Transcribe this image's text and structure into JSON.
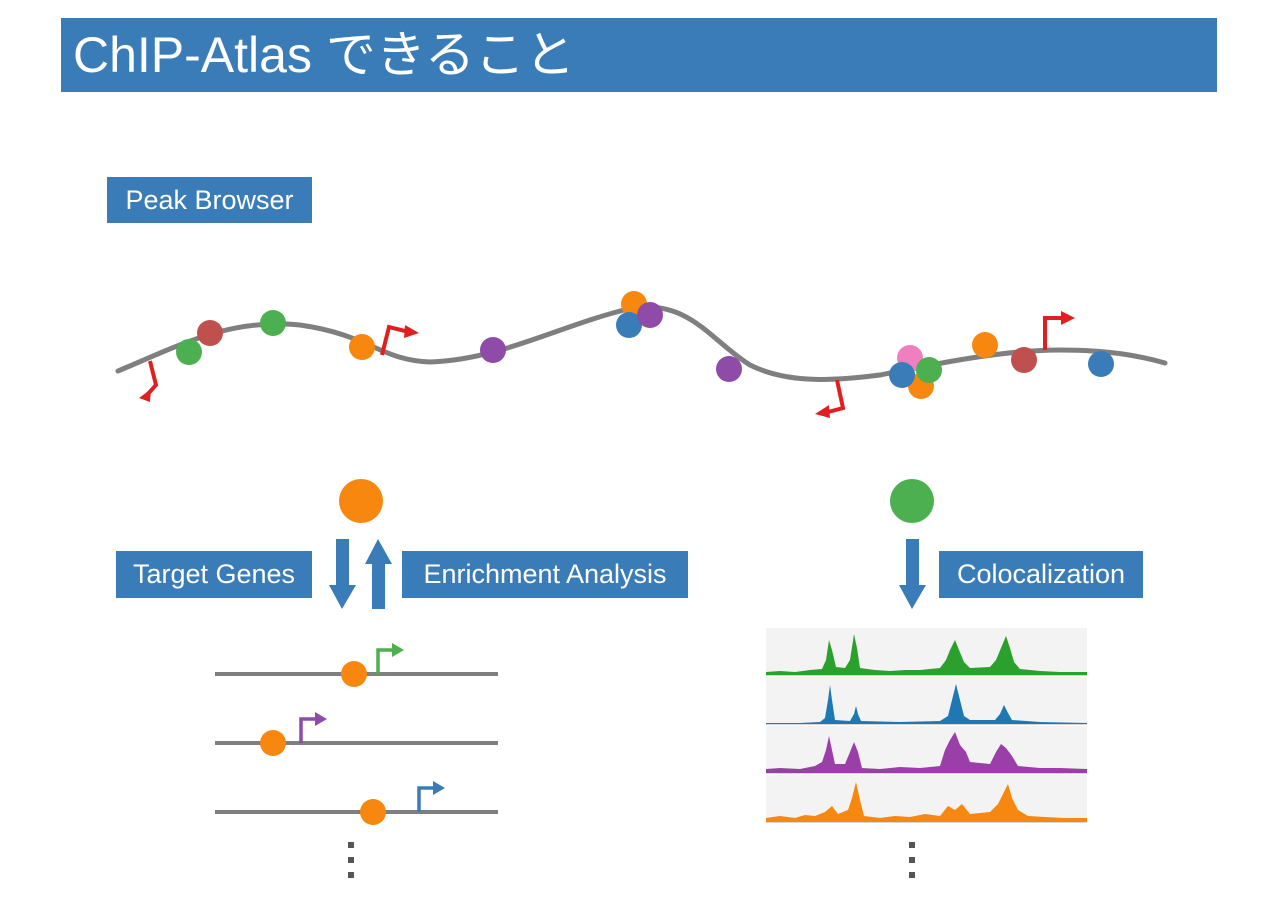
{
  "title": "ChIP-Atlas できること",
  "labels": {
    "peak_browser": "Peak Browser",
    "target_genes": "Target Genes",
    "enrichment_analysis": "Enrichment Analysis",
    "colocalization": "Colocalization"
  },
  "colors": {
    "header_blue": "#3a7cb8",
    "orange": "#f7870f",
    "green": "#4caf50",
    "red_brown": "#c0504d",
    "purple": "#8e4ba8",
    "blue": "#3a7cb8",
    "pink": "#f07fc0",
    "tss_red": "#e02020",
    "genome_gray": "#7f7f7f"
  },
  "icons": {
    "genome_track": "curved-genome-line",
    "tss_marker": "tss-arrow-icon",
    "continuation": "vertical-ellipsis"
  }
}
